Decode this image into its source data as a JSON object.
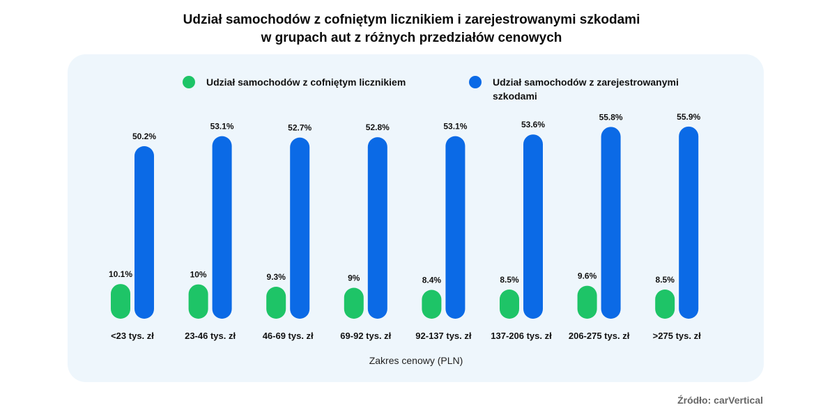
{
  "title_line1": "Udział samochodów z cofniętym licznikiem i zarejestrowanymi szkodami",
  "title_line2": "w grupach aut z różnych przedziałów cenowych",
  "source": "Źródło: carVertical",
  "colors": {
    "green": "#1ec467",
    "blue": "#0b6ae6",
    "panel": "#eef6fc"
  },
  "chart_data": {
    "type": "bar",
    "categories": [
      "<23 tys. zł",
      "23-46 tys. zł",
      "46-69 tys. zł",
      "69-92 tys. zł",
      "92-137 tys. zł",
      "137-206 tys. zł",
      "206-275 tys. zł",
      ">275 tys. zł"
    ],
    "series": [
      {
        "name": "Udział samochodów z cofniętym licznikiem",
        "values": [
          10.1,
          10,
          9.3,
          9,
          8.4,
          8.5,
          9.6,
          8.5
        ],
        "labels": [
          "10.1%",
          "10%",
          "9.3%",
          "9%",
          "8.4%",
          "8.5%",
          "9.6%",
          "8.5%"
        ],
        "color": "#1ec467"
      },
      {
        "name": "Udział samochodów z zarejestrowanymi szkodami",
        "name_lines": [
          "Udział samochodów z zarejestrowanymi",
          "szkodami"
        ],
        "values": [
          50.2,
          53.1,
          52.7,
          52.8,
          53.1,
          53.6,
          55.8,
          55.9
        ],
        "labels": [
          "50.2%",
          "53.1%",
          "52.7%",
          "52.8%",
          "53.1%",
          "53.6%",
          "55.8%",
          "55.9%"
        ],
        "color": "#0b6ae6"
      }
    ],
    "xlabel": "Zakres cenowy (PLN)",
    "ylabel": "",
    "ylim": [
      0,
      60
    ],
    "grid": false,
    "legend": "top"
  }
}
